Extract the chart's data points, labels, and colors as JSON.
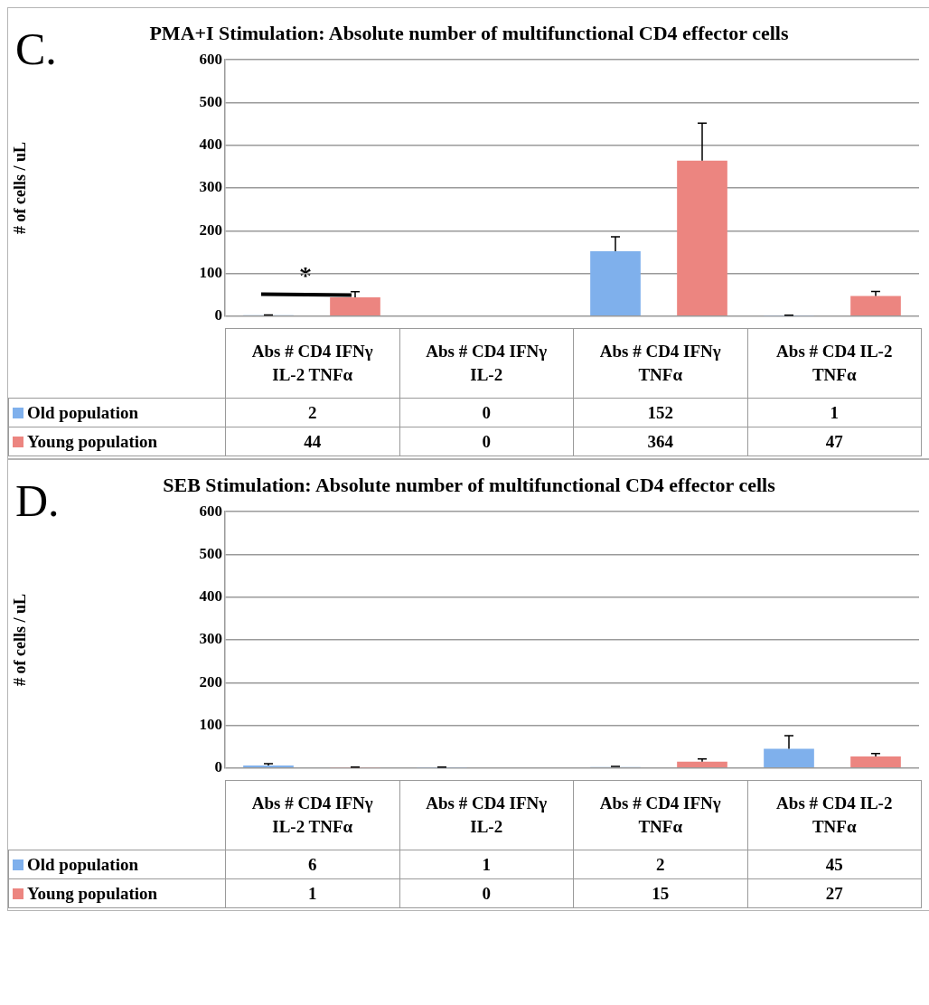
{
  "chart_data": [
    {
      "type": "bar",
      "title": "PMA+I Stimulation: Absolute number of multifunctional  CD4 effector cells",
      "ylabel": "# of cells / uL",
      "categories": [
        "Abs # CD4 IFNγ IL-2 TNFα",
        "Abs # CD4 IFNγ IL-2",
        "Abs # CD4 IFNγ TNFα",
        "Abs # CD4 IL-2 TNFα"
      ],
      "series": [
        {
          "name": "Old population",
          "color": "#7fb0ec",
          "values": [
            2,
            0,
            152,
            1
          ],
          "errors": [
            [
              2,
              3
            ],
            null,
            [
              152,
              186
            ],
            [
              1,
              2
            ]
          ]
        },
        {
          "name": "Young population",
          "color": "#ec8580",
          "values": [
            44,
            0,
            364,
            47
          ],
          "errors": [
            [
              44,
              57
            ],
            null,
            [
              364,
              452
            ],
            [
              47,
              58
            ]
          ]
        }
      ],
      "ylim": [
        0,
        600
      ],
      "yticks": [
        0,
        100,
        200,
        300,
        400,
        500,
        600
      ],
      "grid": "y",
      "legend": "bottom left",
      "data_labels": true,
      "annotations": [
        "C.",
        "*"
      ]
    },
    {
      "type": "bar",
      "title": "SEB Stimulation: Absolute number of multifunctional CD4 effector cells",
      "ylabel": "# of cells / uL",
      "categories": [
        "Abs # CD4 IFNγ IL-2 TNFα",
        "Abs # CD4 IFNγ IL-2",
        "Abs # CD4 IFNγ TNFα",
        "Abs # CD4 IL-2 TNFα"
      ],
      "series": [
        {
          "name": "Old population",
          "color": "#7fb0ec",
          "values": [
            6,
            1,
            2,
            45
          ],
          "errors": [
            [
              6,
              10
            ],
            [
              1,
              2
            ],
            [
              2,
              4
            ],
            [
              45,
              76
            ]
          ]
        },
        {
          "name": "Young population",
          "color": "#ec8580",
          "values": [
            1,
            0,
            15,
            27
          ],
          "errors": [
            [
              1,
              2
            ],
            null,
            [
              15,
              21
            ],
            [
              27,
              34
            ]
          ]
        }
      ],
      "ylim": [
        0,
        600
      ],
      "yticks": [
        0,
        100,
        200,
        300,
        400,
        500,
        600
      ],
      "grid": "y",
      "legend": "bottom left",
      "data_labels": true,
      "annotations": [
        "D."
      ]
    }
  ]
}
